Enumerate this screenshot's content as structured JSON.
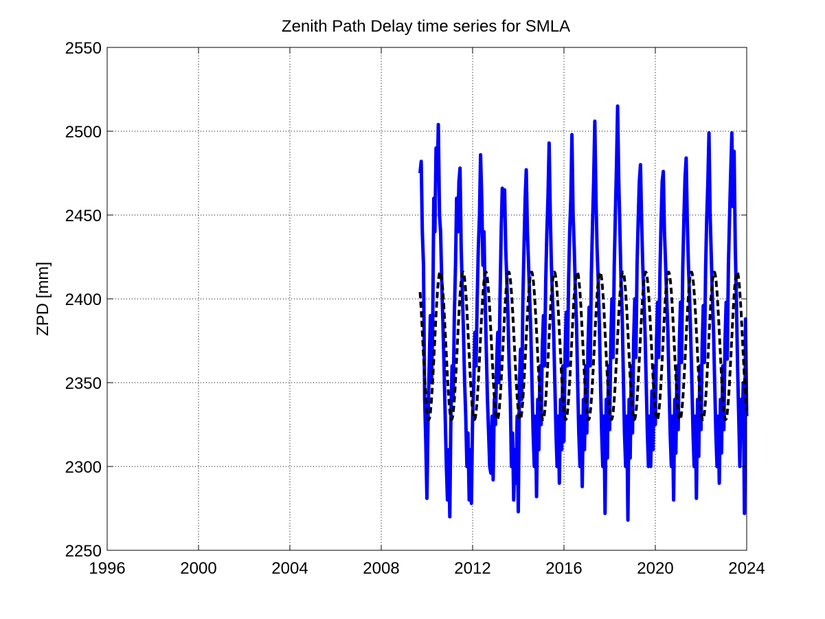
{
  "chart_data": {
    "type": "line",
    "title": "Zenith Path Delay time series for SMLA",
    "xlabel": "",
    "ylabel": "ZPD [mm]",
    "xlim": [
      1996,
      2024
    ],
    "ylim": [
      2250,
      2550
    ],
    "x_ticks": [
      "1996",
      "2000",
      "2004",
      "2008",
      "2012",
      "2016",
      "2020",
      "2024"
    ],
    "y_ticks": [
      "2250",
      "2300",
      "2350",
      "2400",
      "2450",
      "2500",
      "2550"
    ],
    "grid": true,
    "legend": "none",
    "series": [
      {
        "style": "solid",
        "color": "#0000ff",
        "x_start": 2009.7,
        "x_end": 2024.0,
        "points": [
          [
            2009.7,
            2475
          ],
          [
            2009.75,
            2482
          ],
          [
            2009.8,
            2440
          ],
          [
            2009.85,
            2420
          ],
          [
            2009.9,
            2340
          ],
          [
            2009.95,
            2315
          ],
          [
            2010.0,
            2281
          ],
          [
            2010.05,
            2330
          ],
          [
            2010.1,
            2360
          ],
          [
            2010.15,
            2390
          ],
          [
            2010.2,
            2350
          ],
          [
            2010.25,
            2380
          ],
          [
            2010.3,
            2460
          ],
          [
            2010.35,
            2440
          ],
          [
            2010.4,
            2490
          ],
          [
            2010.45,
            2472
          ],
          [
            2010.5,
            2504
          ],
          [
            2010.55,
            2450
          ],
          [
            2010.6,
            2440
          ],
          [
            2010.65,
            2410
          ],
          [
            2010.7,
            2385
          ],
          [
            2010.75,
            2360
          ],
          [
            2010.8,
            2330
          ],
          [
            2010.85,
            2300
          ],
          [
            2010.9,
            2280
          ],
          [
            2010.95,
            2310
          ],
          [
            2011.0,
            2270
          ],
          [
            2011.05,
            2330
          ],
          [
            2011.1,
            2360
          ],
          [
            2011.15,
            2340
          ],
          [
            2011.2,
            2390
          ],
          [
            2011.25,
            2420
          ],
          [
            2011.3,
            2460
          ],
          [
            2011.35,
            2440
          ],
          [
            2011.4,
            2470
          ],
          [
            2011.45,
            2478
          ],
          [
            2011.5,
            2430
          ],
          [
            2011.55,
            2405
          ],
          [
            2011.6,
            2380
          ],
          [
            2011.65,
            2350
          ],
          [
            2011.7,
            2330
          ],
          [
            2011.75,
            2300
          ],
          [
            2011.8,
            2320
          ],
          [
            2011.85,
            2280
          ],
          [
            2011.9,
            2310
          ],
          [
            2011.95,
            2278
          ],
          [
            2012.0,
            2330
          ],
          [
            2012.05,
            2350
          ],
          [
            2012.1,
            2380
          ],
          [
            2012.15,
            2360
          ],
          [
            2012.2,
            2400
          ],
          [
            2012.25,
            2430
          ],
          [
            2012.3,
            2450
          ],
          [
            2012.35,
            2486
          ],
          [
            2012.4,
            2460
          ],
          [
            2012.45,
            2420
          ],
          [
            2012.5,
            2440
          ],
          [
            2012.55,
            2400
          ],
          [
            2012.6,
            2370
          ],
          [
            2012.65,
            2340
          ],
          [
            2012.7,
            2320
          ],
          [
            2012.75,
            2300
          ],
          [
            2012.8,
            2296
          ],
          [
            2012.85,
            2330
          ],
          [
            2012.9,
            2292
          ],
          [
            2012.95,
            2340
          ],
          [
            2013.0,
            2325
          ],
          [
            2013.05,
            2360
          ],
          [
            2013.1,
            2380
          ],
          [
            2013.15,
            2350
          ],
          [
            2013.2,
            2400
          ],
          [
            2013.25,
            2440
          ],
          [
            2013.3,
            2466
          ],
          [
            2013.35,
            2450
          ],
          [
            2013.4,
            2465
          ],
          [
            2013.45,
            2430
          ],
          [
            2013.5,
            2410
          ],
          [
            2013.55,
            2390
          ],
          [
            2013.6,
            2360
          ],
          [
            2013.65,
            2340
          ],
          [
            2013.7,
            2300
          ],
          [
            2013.75,
            2320
          ],
          [
            2013.8,
            2280
          ],
          [
            2013.85,
            2310
          ],
          [
            2013.9,
            2290
          ],
          [
            2013.95,
            2330
          ],
          [
            2014.0,
            2273
          ],
          [
            2014.05,
            2350
          ],
          [
            2014.1,
            2370
          ],
          [
            2014.15,
            2340
          ],
          [
            2014.2,
            2400
          ],
          [
            2014.25,
            2430
          ],
          [
            2014.3,
            2460
          ],
          [
            2014.35,
            2477
          ],
          [
            2014.4,
            2440
          ],
          [
            2014.45,
            2420
          ],
          [
            2014.5,
            2400
          ],
          [
            2014.55,
            2380
          ],
          [
            2014.6,
            2350
          ],
          [
            2014.65,
            2320
          ],
          [
            2014.7,
            2300
          ],
          [
            2014.75,
            2330
          ],
          [
            2014.8,
            2282
          ],
          [
            2014.85,
            2340
          ],
          [
            2014.9,
            2310
          ],
          [
            2014.95,
            2360
          ],
          [
            2015.0,
            2325
          ],
          [
            2015.05,
            2370
          ],
          [
            2015.1,
            2390
          ],
          [
            2015.15,
            2360
          ],
          [
            2015.2,
            2410
          ],
          [
            2015.25,
            2440
          ],
          [
            2015.3,
            2460
          ],
          [
            2015.35,
            2493
          ],
          [
            2015.4,
            2450
          ],
          [
            2015.45,
            2420
          ],
          [
            2015.5,
            2400
          ],
          [
            2015.55,
            2380
          ],
          [
            2015.6,
            2350
          ],
          [
            2015.65,
            2320
          ],
          [
            2015.7,
            2300
          ],
          [
            2015.75,
            2330
          ],
          [
            2015.8,
            2290
          ],
          [
            2015.85,
            2340
          ],
          [
            2015.9,
            2310
          ],
          [
            2015.95,
            2360
          ],
          [
            2016.0,
            2315
          ],
          [
            2016.05,
            2370
          ],
          [
            2016.1,
            2392
          ],
          [
            2016.15,
            2360
          ],
          [
            2016.2,
            2410
          ],
          [
            2016.25,
            2440
          ],
          [
            2016.3,
            2460
          ],
          [
            2016.35,
            2498
          ],
          [
            2016.4,
            2450
          ],
          [
            2016.45,
            2430
          ],
          [
            2016.5,
            2405
          ],
          [
            2016.55,
            2385
          ],
          [
            2016.6,
            2350
          ],
          [
            2016.65,
            2320
          ],
          [
            2016.7,
            2300
          ],
          [
            2016.75,
            2330
          ],
          [
            2016.8,
            2288
          ],
          [
            2016.85,
            2340
          ],
          [
            2016.9,
            2310
          ],
          [
            2016.95,
            2360
          ],
          [
            2017.0,
            2320
          ],
          [
            2017.05,
            2370
          ],
          [
            2017.1,
            2395
          ],
          [
            2017.15,
            2360
          ],
          [
            2017.2,
            2415
          ],
          [
            2017.25,
            2445
          ],
          [
            2017.3,
            2470
          ],
          [
            2017.35,
            2506
          ],
          [
            2017.4,
            2460
          ],
          [
            2017.45,
            2430
          ],
          [
            2017.5,
            2410
          ],
          [
            2017.55,
            2385
          ],
          [
            2017.6,
            2350
          ],
          [
            2017.65,
            2320
          ],
          [
            2017.7,
            2300
          ],
          [
            2017.75,
            2330
          ],
          [
            2017.8,
            2272
          ],
          [
            2017.85,
            2340
          ],
          [
            2017.9,
            2305
          ],
          [
            2017.95,
            2360
          ],
          [
            2018.0,
            2322
          ],
          [
            2018.05,
            2375
          ],
          [
            2018.1,
            2400
          ],
          [
            2018.15,
            2365
          ],
          [
            2018.2,
            2420
          ],
          [
            2018.25,
            2450
          ],
          [
            2018.3,
            2480
          ],
          [
            2018.35,
            2515
          ],
          [
            2018.4,
            2470
          ],
          [
            2018.45,
            2440
          ],
          [
            2018.5,
            2410
          ],
          [
            2018.55,
            2390
          ],
          [
            2018.6,
            2355
          ],
          [
            2018.65,
            2320
          ],
          [
            2018.7,
            2300
          ],
          [
            2018.75,
            2330
          ],
          [
            2018.8,
            2268
          ],
          [
            2018.85,
            2340
          ],
          [
            2018.9,
            2305
          ],
          [
            2018.95,
            2360
          ],
          [
            2019.0,
            2320
          ],
          [
            2019.05,
            2375
          ],
          [
            2019.1,
            2400
          ],
          [
            2019.15,
            2365
          ],
          [
            2019.2,
            2420
          ],
          [
            2019.25,
            2448
          ],
          [
            2019.3,
            2470
          ],
          [
            2019.35,
            2480
          ],
          [
            2019.4,
            2445
          ],
          [
            2019.45,
            2420
          ],
          [
            2019.5,
            2400
          ],
          [
            2019.55,
            2380
          ],
          [
            2019.6,
            2350
          ],
          [
            2019.65,
            2320
          ],
          [
            2019.7,
            2300
          ],
          [
            2019.75,
            2330
          ],
          [
            2019.8,
            2300
          ],
          [
            2019.85,
            2345
          ],
          [
            2019.9,
            2310
          ],
          [
            2019.95,
            2360
          ],
          [
            2020.0,
            2325
          ],
          [
            2020.05,
            2375
          ],
          [
            2020.1,
            2398
          ],
          [
            2020.15,
            2365
          ],
          [
            2020.2,
            2415
          ],
          [
            2020.25,
            2445
          ],
          [
            2020.3,
            2470
          ],
          [
            2020.35,
            2476
          ],
          [
            2020.4,
            2440
          ],
          [
            2020.45,
            2420
          ],
          [
            2020.5,
            2400
          ],
          [
            2020.55,
            2380
          ],
          [
            2020.6,
            2350
          ],
          [
            2020.65,
            2320
          ],
          [
            2020.7,
            2300
          ],
          [
            2020.75,
            2330
          ],
          [
            2020.8,
            2280
          ],
          [
            2020.85,
            2340
          ],
          [
            2020.9,
            2308
          ],
          [
            2020.95,
            2360
          ],
          [
            2021.0,
            2322
          ],
          [
            2021.05,
            2372
          ],
          [
            2021.1,
            2398
          ],
          [
            2021.15,
            2362
          ],
          [
            2021.2,
            2418
          ],
          [
            2021.25,
            2448
          ],
          [
            2021.3,
            2472
          ],
          [
            2021.35,
            2484
          ],
          [
            2021.4,
            2445
          ],
          [
            2021.45,
            2420
          ],
          [
            2021.5,
            2400
          ],
          [
            2021.55,
            2378
          ],
          [
            2021.6,
            2350
          ],
          [
            2021.65,
            2320
          ],
          [
            2021.7,
            2300
          ],
          [
            2021.75,
            2330
          ],
          [
            2021.8,
            2281
          ],
          [
            2021.85,
            2340
          ],
          [
            2021.9,
            2306
          ],
          [
            2021.95,
            2360
          ],
          [
            2022.0,
            2322
          ],
          [
            2022.05,
            2372
          ],
          [
            2022.1,
            2396
          ],
          [
            2022.15,
            2362
          ],
          [
            2022.2,
            2418
          ],
          [
            2022.25,
            2448
          ],
          [
            2022.3,
            2470
          ],
          [
            2022.35,
            2499
          ],
          [
            2022.4,
            2450
          ],
          [
            2022.45,
            2425
          ],
          [
            2022.5,
            2400
          ],
          [
            2022.55,
            2380
          ],
          [
            2022.6,
            2350
          ],
          [
            2022.65,
            2320
          ],
          [
            2022.7,
            2300
          ],
          [
            2022.75,
            2330
          ],
          [
            2022.8,
            2290
          ],
          [
            2022.85,
            2340
          ],
          [
            2022.9,
            2308
          ],
          [
            2022.95,
            2360
          ],
          [
            2023.0,
            2322
          ],
          [
            2023.05,
            2374
          ],
          [
            2023.1,
            2398
          ],
          [
            2023.15,
            2364
          ],
          [
            2023.2,
            2420
          ],
          [
            2023.25,
            2450
          ],
          [
            2023.3,
            2475
          ],
          [
            2023.35,
            2499
          ],
          [
            2023.4,
            2455
          ],
          [
            2023.45,
            2488
          ],
          [
            2023.5,
            2430
          ],
          [
            2023.55,
            2400
          ],
          [
            2023.6,
            2360
          ],
          [
            2023.65,
            2330
          ],
          [
            2023.7,
            2300
          ],
          [
            2023.75,
            2340
          ],
          [
            2023.8,
            2318
          ],
          [
            2023.85,
            2350
          ],
          [
            2023.9,
            2272
          ],
          [
            2023.95,
            2388
          ],
          [
            2024.0,
            2330
          ]
        ]
      },
      {
        "style": "dashed",
        "color": "#000000",
        "model": "seasonal",
        "x_start": 2009.7,
        "x_end": 2024.0,
        "mean": 2372,
        "amplitude": 44,
        "peak_fraction_of_year": 0.58
      }
    ]
  }
}
